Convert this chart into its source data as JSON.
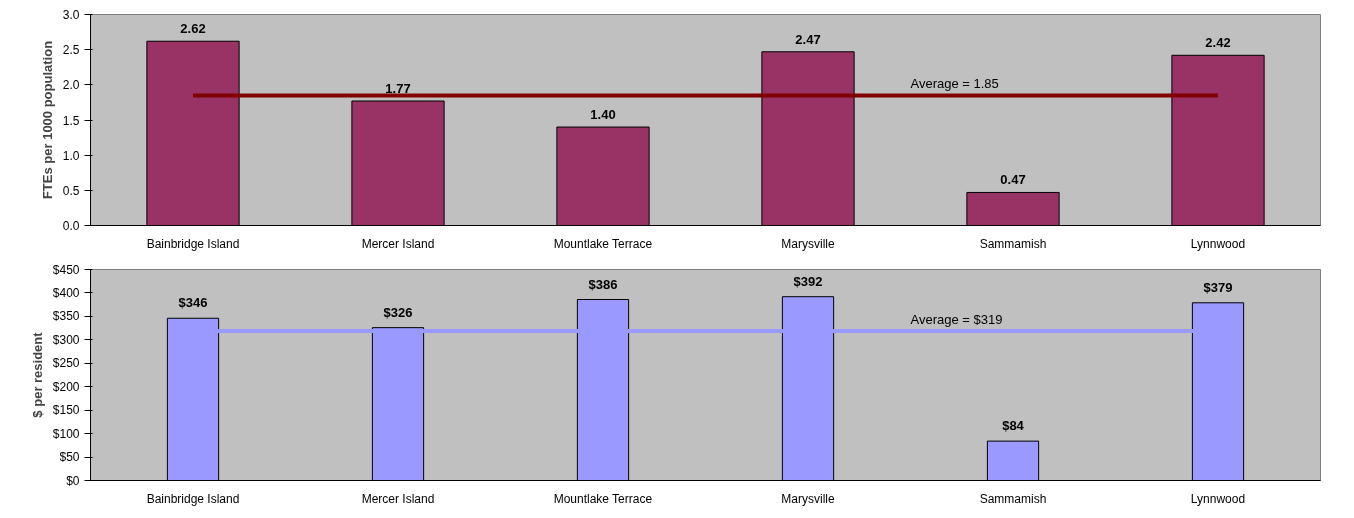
{
  "chart_data": [
    {
      "type": "bar",
      "ylabel": "FTEs per 1000 population",
      "categories": [
        "Bainbridge Island",
        "Mercer Island",
        "Mountlake Terrace",
        "Marysville",
        "Sammamish",
        "Lynnwood"
      ],
      "series": [
        {
          "color": "#993366",
          "values": [
            2.62,
            1.77,
            1.4,
            2.47,
            0.47,
            2.42
          ],
          "value_labels": [
            "2.62",
            "1.77",
            "1.40",
            "2.47",
            "0.47",
            "2.42"
          ]
        }
      ],
      "ylim": [
        0,
        3
      ],
      "yticks": [
        {
          "value": 0,
          "label": "0.0"
        },
        {
          "value": 0.5,
          "label": "0.5"
        },
        {
          "value": 1,
          "label": "1.0"
        },
        {
          "value": 1.5,
          "label": "1.5"
        },
        {
          "value": 2,
          "label": "2.0"
        },
        {
          "value": 2.5,
          "label": "2.5"
        },
        {
          "value": 3,
          "label": "3.0"
        }
      ],
      "ref_lines": [
        {
          "axis": "y",
          "value": 1.85,
          "label": "Average = 1.85",
          "color": "#800000"
        }
      ],
      "grid": false
    },
    {
      "type": "bar",
      "ylabel": "$ per resident",
      "categories": [
        "Bainbridge Island",
        "Mercer Island",
        "Mountlake Terrace",
        "Marysville",
        "Sammamish",
        "Lynnwood"
      ],
      "series": [
        {
          "color": "#9999ff",
          "values": [
            346,
            326,
            386,
            392,
            84,
            379
          ],
          "value_labels": [
            "$346",
            "$326",
            "$386",
            "$392",
            "$84",
            "$379"
          ]
        }
      ],
      "ylim": [
        0,
        450
      ],
      "yticks": [
        {
          "value": 0,
          "label": "$0"
        },
        {
          "value": 50,
          "label": "$50"
        },
        {
          "value": 100,
          "label": "$100"
        },
        {
          "value": 150,
          "label": "$150"
        },
        {
          "value": 200,
          "label": "$200"
        },
        {
          "value": 250,
          "label": "$250"
        },
        {
          "value": 300,
          "label": "$300"
        },
        {
          "value": 350,
          "label": "$350"
        },
        {
          "value": 400,
          "label": "$400"
        },
        {
          "value": 450,
          "label": "$450"
        }
      ],
      "ref_lines": [
        {
          "axis": "y",
          "value": 319,
          "label": "Average = $319",
          "color": "#9999ff"
        }
      ],
      "grid": false
    }
  ]
}
